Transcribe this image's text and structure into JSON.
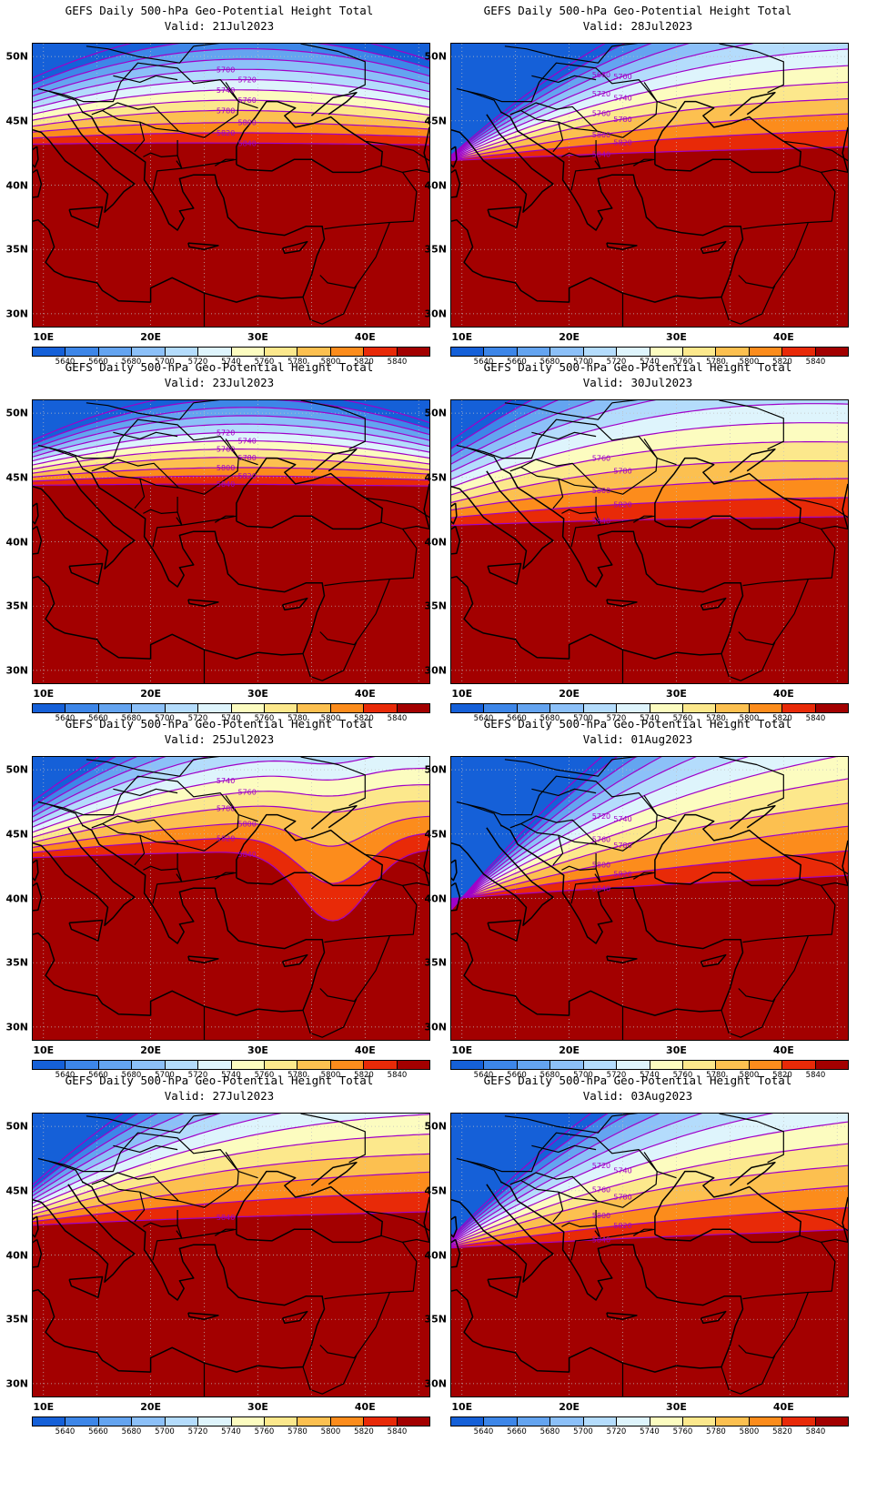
{
  "panels": [
    {
      "title": "GEFS Daily 500-hPa Geo-Potential Height Total",
      "valid": "Valid: 21Jul2023",
      "contour_labels": [
        "5700",
        "5720",
        "5740",
        "5760",
        "5780",
        "5800",
        "5820",
        "5840"
      ]
    },
    {
      "title": "GEFS Daily 500-hPa Geo-Potential Height Total",
      "valid": "Valid: 28Jul2023",
      "contour_labels": [
        "5680",
        "5700",
        "5720",
        "5740",
        "5760",
        "5780",
        "5800",
        "5820",
        "5840"
      ]
    },
    {
      "title": "GEFS Daily 500-hPa Geo-Potential Height Total",
      "valid": "Valid: 23Jul2023",
      "contour_labels": [
        "5720",
        "5740",
        "5760",
        "5780",
        "5800",
        "5820",
        "5840"
      ]
    },
    {
      "title": "GEFS Daily 500-hPa Geo-Potential Height Total",
      "valid": "Valid: 30Jul2023",
      "contour_labels": [
        "5760",
        "5780",
        "5800",
        "5820",
        "5840"
      ]
    },
    {
      "title": "GEFS Daily 500-hPa Geo-Potential Height Total",
      "valid": "Valid: 25Jul2023",
      "contour_labels": [
        "5740",
        "5760",
        "5780",
        "5800",
        "5820",
        "5840"
      ]
    },
    {
      "title": "GEFS Daily 500-hPa Geo-Potential Height Total",
      "valid": "Valid: 01Aug2023",
      "contour_labels": [
        "5720",
        "5740",
        "5760",
        "5780",
        "5800",
        "5820",
        "5840"
      ]
    },
    {
      "title": "GEFS Daily 500-hPa Geo-Potential Height Total",
      "valid": "Valid: 27Jul2023",
      "contour_labels": [
        "5840"
      ]
    },
    {
      "title": "GEFS Daily 500-hPa Geo-Potential Height Total",
      "valid": "Valid: 03Aug2023",
      "contour_labels": [
        "5720",
        "5740",
        "5760",
        "5780",
        "5800",
        "5820",
        "5840"
      ]
    }
  ],
  "lat_labels": [
    "50N",
    "45N",
    "40N",
    "35N",
    "30N"
  ],
  "lon_labels": [
    "10E",
    "20E",
    "30E",
    "40E"
  ],
  "colorbar": {
    "labels": [
      "5640",
      "5660",
      "5680",
      "5700",
      "5720",
      "5740",
      "5760",
      "5780",
      "5800",
      "5820",
      "5840"
    ],
    "colors": [
      "#1560d8",
      "#3d86e8",
      "#64a4f0",
      "#8cc0f8",
      "#b4dcfc",
      "#def4fc",
      "#fcfcc0",
      "#fce88c",
      "#fcc050",
      "#fc8c1c",
      "#e82a08",
      "#a30000"
    ]
  },
  "contour_color": "#a000c8",
  "grid_color": "#c0c0c0"
}
